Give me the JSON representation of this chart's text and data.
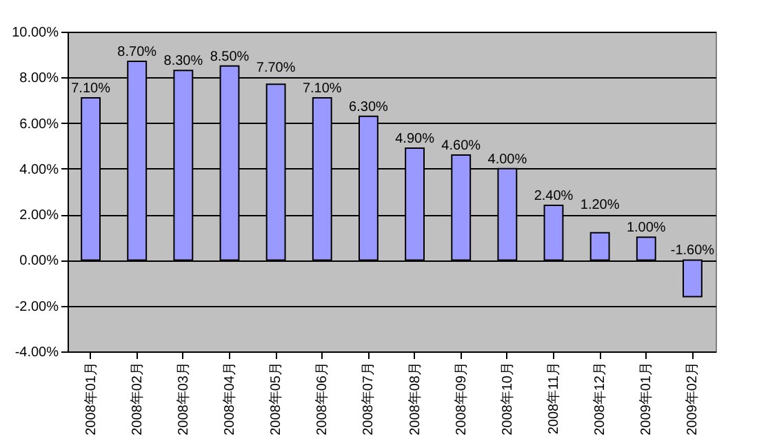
{
  "chart_data": {
    "type": "bar",
    "categories": [
      "2008年01月",
      "2008年02月",
      "2008年03月",
      "2008年04月",
      "2008年05月",
      "2008年06月",
      "2008年07月",
      "2008年08月",
      "2008年09月",
      "2008年10月",
      "2008年11月",
      "2008年12月",
      "2009年01月",
      "2009年02月"
    ],
    "values": [
      7.1,
      8.7,
      8.3,
      8.5,
      7.7,
      7.1,
      6.3,
      4.9,
      4.6,
      4.0,
      2.4,
      1.2,
      1.0,
      -1.6
    ],
    "value_labels": [
      "7.10%",
      "8.70%",
      "8.30%",
      "8.50%",
      "7.70%",
      "7.10%",
      "6.30%",
      "4.90%",
      "4.60%",
      "4.00%",
      "2.40%",
      "1.20%",
      "1.00%",
      "-1.60%"
    ],
    "color": "#9999ff",
    "ylim": [
      -4,
      10
    ],
    "yticks": [
      {
        "value": -4,
        "label": "-4.00%"
      },
      {
        "value": -2,
        "label": "-2.00%"
      },
      {
        "value": 0,
        "label": "0.00%"
      },
      {
        "value": 2,
        "label": "2.00%"
      },
      {
        "value": 4,
        "label": "4.00%"
      },
      {
        "value": 6,
        "label": "6.00%"
      },
      {
        "value": 8,
        "label": "8.00%"
      },
      {
        "value": 10,
        "label": "10.00%"
      }
    ],
    "grid": "y"
  }
}
